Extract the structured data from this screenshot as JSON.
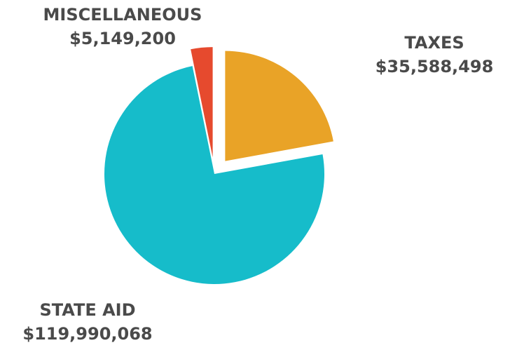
{
  "chart_data": {
    "type": "pie",
    "categories": [
      "TAXES",
      "STATE AID",
      "MISCELLANEOUS"
    ],
    "values": [
      35588498,
      119990068,
      5149200
    ],
    "value_labels": [
      "$35,588,498",
      "$119,990,068",
      "$5,149,200"
    ],
    "colors": [
      "#e9a327",
      "#16bcca",
      "#e64a2e"
    ],
    "exploded": [
      true,
      false,
      true
    ],
    "start_angle_deg": 0,
    "direction": "clockwise"
  }
}
